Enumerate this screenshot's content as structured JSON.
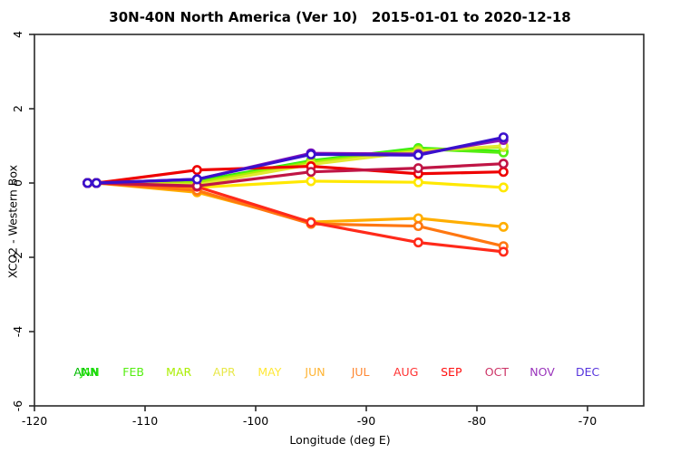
{
  "page": {
    "title": "30N-40N North America (Ver 10)   2015-01-01 to 2020-12-18"
  },
  "chart_data": {
    "type": "line",
    "title": "30N-40N North America (Ver 10)   2015-01-01 to 2020-12-18",
    "xlabel": "Longitude (deg E)",
    "ylabel": "XCO2 - Western Box",
    "xlim": [
      -120,
      -64.9
    ],
    "ylim": [
      -6,
      4
    ],
    "xticks": [
      -120,
      -110,
      -100,
      -90,
      -80,
      -70
    ],
    "yticks": [
      -6,
      -4,
      -2,
      0,
      2,
      4
    ],
    "grid": false,
    "legend_position": "bottom-inside",
    "marker": "open-circle",
    "x": [
      -115.2,
      -114.4,
      -105.3,
      -95.0,
      -85.3,
      -77.6
    ],
    "series": [
      {
        "name": "ANN",
        "color": "#00BB00",
        "values": [
          0,
          0,
          0.04,
          0.58,
          0.92,
          0.84
        ]
      },
      {
        "name": "JAN",
        "color": "#22EE00",
        "values": [
          0,
          0,
          0.05,
          0.6,
          0.94,
          0.85
        ]
      },
      {
        "name": "FEB",
        "color": "#55EE11",
        "values": [
          0,
          0,
          0.02,
          0.58,
          0.92,
          0.82
        ]
      },
      {
        "name": "MAR",
        "color": "#AAEE00",
        "values": [
          0,
          0,
          0.0,
          0.55,
          0.88,
          0.97
        ]
      },
      {
        "name": "APR",
        "color": "#E2E832",
        "values": [
          0,
          0,
          -0.05,
          0.5,
          0.85,
          1.0
        ]
      },
      {
        "name": "MAY",
        "color": "#FFE800",
        "values": [
          0,
          0,
          -0.12,
          0.05,
          0.02,
          -0.12
        ]
      },
      {
        "name": "JUN",
        "color": "#FFAE00",
        "values": [
          0,
          0,
          -0.25,
          -1.05,
          -0.95,
          -1.18
        ]
      },
      {
        "name": "JUL",
        "color": "#FF7711",
        "values": [
          0,
          0,
          -0.2,
          -1.1,
          -1.16,
          -1.7
        ]
      },
      {
        "name": "AUG",
        "color": "#FF2A1A",
        "values": [
          0,
          0,
          -0.1,
          -1.06,
          -1.6,
          -1.85
        ]
      },
      {
        "name": "SEP",
        "color": "#EE0000",
        "values": [
          0,
          0,
          0.35,
          0.45,
          0.25,
          0.3
        ]
      },
      {
        "name": "OCT",
        "color": "#C01545",
        "values": [
          0,
          0,
          -0.08,
          0.3,
          0.4,
          0.52
        ]
      },
      {
        "name": "NOV",
        "color": "#8812B8",
        "values": [
          0,
          0,
          0.1,
          0.8,
          0.78,
          1.16
        ]
      },
      {
        "name": "DEC",
        "color": "#3A10CC",
        "values": [
          0,
          0,
          0.1,
          0.77,
          0.75,
          1.23
        ]
      }
    ],
    "legend": [
      {
        "label": "ANN",
        "color": "#00BB00",
        "slot": 0,
        "dx": -2
      },
      {
        "label": "JAN",
        "color": "#22EE00",
        "slot": 0,
        "dx": 2
      },
      {
        "label": "FEB",
        "color": "#55EE11",
        "slot": 1,
        "dx": 0
      },
      {
        "label": "MAR",
        "color": "#AAEE00",
        "slot": 2,
        "dx": 0
      },
      {
        "label": "APR",
        "color": "#E8E84A",
        "slot": 3,
        "dx": 0
      },
      {
        "label": "MAY",
        "color": "#FFE838",
        "slot": 4,
        "dx": 0
      },
      {
        "label": "JUN",
        "color": "#FFB433",
        "slot": 5,
        "dx": 0
      },
      {
        "label": "JUL",
        "color": "#FF8833",
        "slot": 6,
        "dx": 0
      },
      {
        "label": "AUG",
        "color": "#FF3333",
        "slot": 7,
        "dx": 0
      },
      {
        "label": "SEP",
        "color": "#FF1111",
        "slot": 8,
        "dx": 0
      },
      {
        "label": "OCT",
        "color": "#CC3366",
        "slot": 9,
        "dx": 0
      },
      {
        "label": "NOV",
        "color": "#9933BB",
        "slot": 10,
        "dx": 0
      },
      {
        "label": "DEC",
        "color": "#5533DD",
        "slot": 11,
        "dx": 0
      }
    ]
  }
}
